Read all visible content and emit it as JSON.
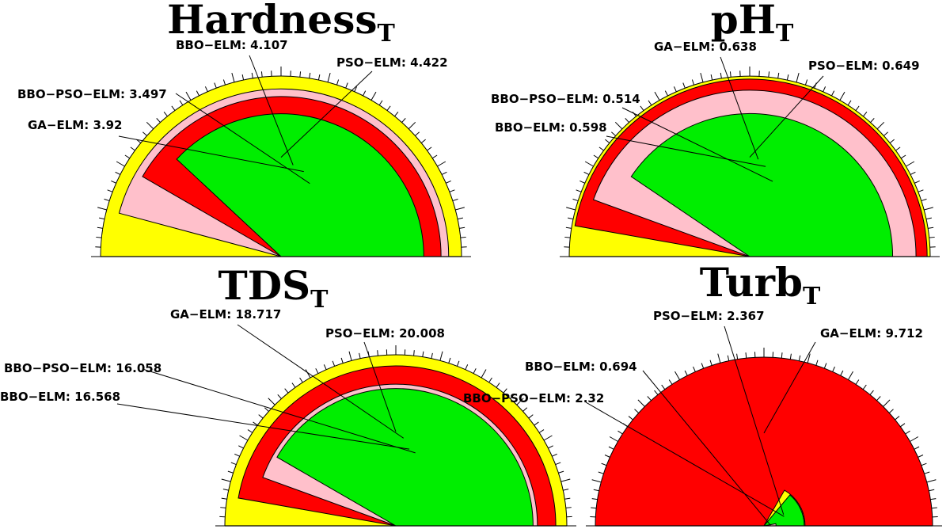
{
  "chart_data": [
    {
      "type": "polar-area",
      "title": "Hardness",
      "title_subscript": "T",
      "series": [
        {
          "name": "BBO-ELM",
          "value": 4.107
        },
        {
          "name": "PSO-ELM",
          "value": 4.422
        },
        {
          "name": "BBO-PSO-ELM",
          "value": 3.497
        },
        {
          "name": "GA-ELM",
          "value": 3.92
        }
      ],
      "labels": [
        "BBO−ELM: 4.107",
        "PSO−ELM: 4.422",
        "BBO−PSO−ELM: 3.497",
        "GA−ELM: 3.92"
      ]
    },
    {
      "type": "polar-area",
      "title": "pH",
      "title_subscript": "T",
      "series": [
        {
          "name": "GA-ELM",
          "value": 0.638
        },
        {
          "name": "PSO-ELM",
          "value": 0.649
        },
        {
          "name": "BBO-PSO-ELM",
          "value": 0.514
        },
        {
          "name": "BBO-ELM",
          "value": 0.598
        }
      ],
      "labels": [
        "GA−ELM: 0.638",
        "PSO−ELM: 0.649",
        "BBO−PSO−ELM: 0.514",
        "BBO−ELM: 0.598"
      ]
    },
    {
      "type": "polar-area",
      "title": "TDS",
      "title_subscript": "T",
      "series": [
        {
          "name": "GA-ELM",
          "value": 18.717
        },
        {
          "name": "PSO-ELM",
          "value": 20.008
        },
        {
          "name": "BBO-PSO-ELM",
          "value": 16.058
        },
        {
          "name": "BBO-ELM",
          "value": 16.568
        }
      ],
      "labels": [
        "GA−ELM: 18.717",
        "PSO−ELM: 20.008",
        "BBO−PSO−ELM: 16.058",
        "BBO−ELM: 16.568"
      ]
    },
    {
      "type": "polar-area",
      "title": "Turb",
      "title_subscript": "T",
      "series": [
        {
          "name": "PSO-ELM",
          "value": 2.367
        },
        {
          "name": "GA-ELM",
          "value": 9.712
        },
        {
          "name": "BBO-ELM",
          "value": 0.694
        },
        {
          "name": "BBO-PSO-ELM",
          "value": 2.32
        }
      ],
      "labels": [
        "PSO−ELM: 2.367",
        "GA−ELM: 9.712",
        "BBO−ELM: 0.694",
        "BBO−PSO−ELM: 2.32"
      ]
    }
  ],
  "colors": {
    "GA-ELM": "#ff0000",
    "PSO-ELM": "#ffff00",
    "BBO-PSO-ELM": "#00ee00",
    "BBO-ELM": "#ffc0cb",
    "outline": "#000000"
  }
}
